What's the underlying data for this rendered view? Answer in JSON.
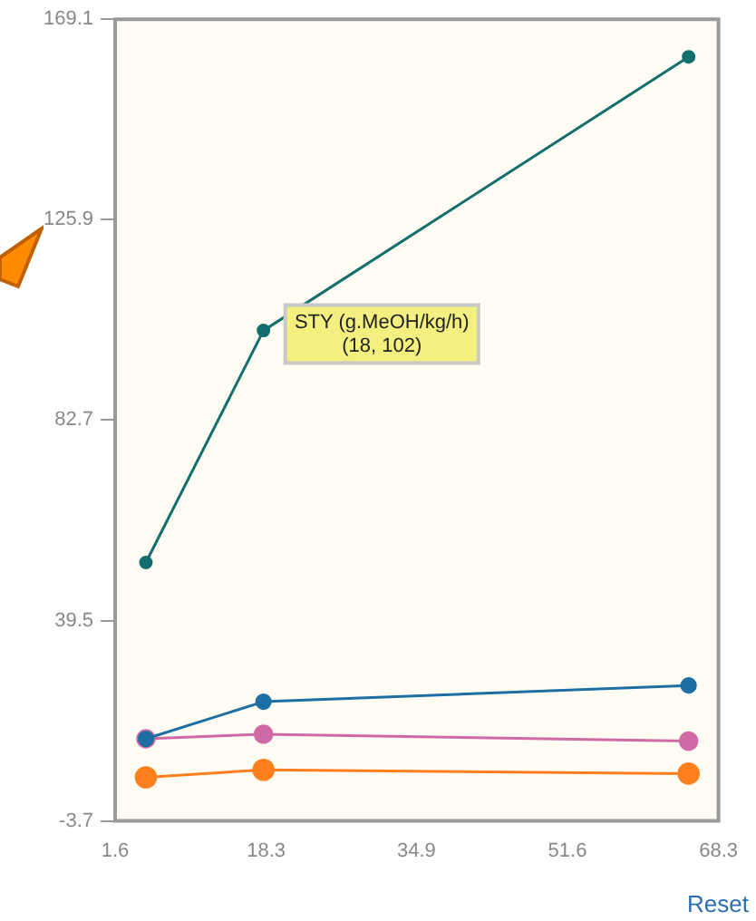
{
  "chart_data": {
    "type": "line",
    "xlim": [
      1.6,
      68.3
    ],
    "xticks": [
      1.6,
      18.3,
      34.9,
      51.6,
      68.3
    ],
    "ylim": [
      -3.7,
      169.1
    ],
    "yticks": [
      -3.7,
      39.5,
      82.7,
      125.9,
      169.1
    ],
    "grid": false,
    "legend": false,
    "marker": "circle",
    "line_style": "solid",
    "series": [
      {
        "color": "#136e6e",
        "x": [
          5,
          18,
          65
        ],
        "values": [
          52,
          102,
          161
        ]
      },
      {
        "color": "#1d6fa3",
        "x": [
          5,
          18,
          65
        ],
        "values": [
          14,
          22,
          25.5
        ]
      },
      {
        "color": "#d06aa6",
        "x": [
          5,
          18,
          65
        ],
        "values": [
          14,
          15,
          13.5
        ]
      },
      {
        "color": "#ff7f1e",
        "x": [
          5,
          18,
          65
        ],
        "values": [
          5.7,
          7.3,
          6.5
        ]
      }
    ],
    "annotations": [
      {
        "text": "STY (g.MeOH/kg/h)\n(18, 102)",
        "x": 18,
        "y": 102
      },
      "Reset"
    ]
  }
}
